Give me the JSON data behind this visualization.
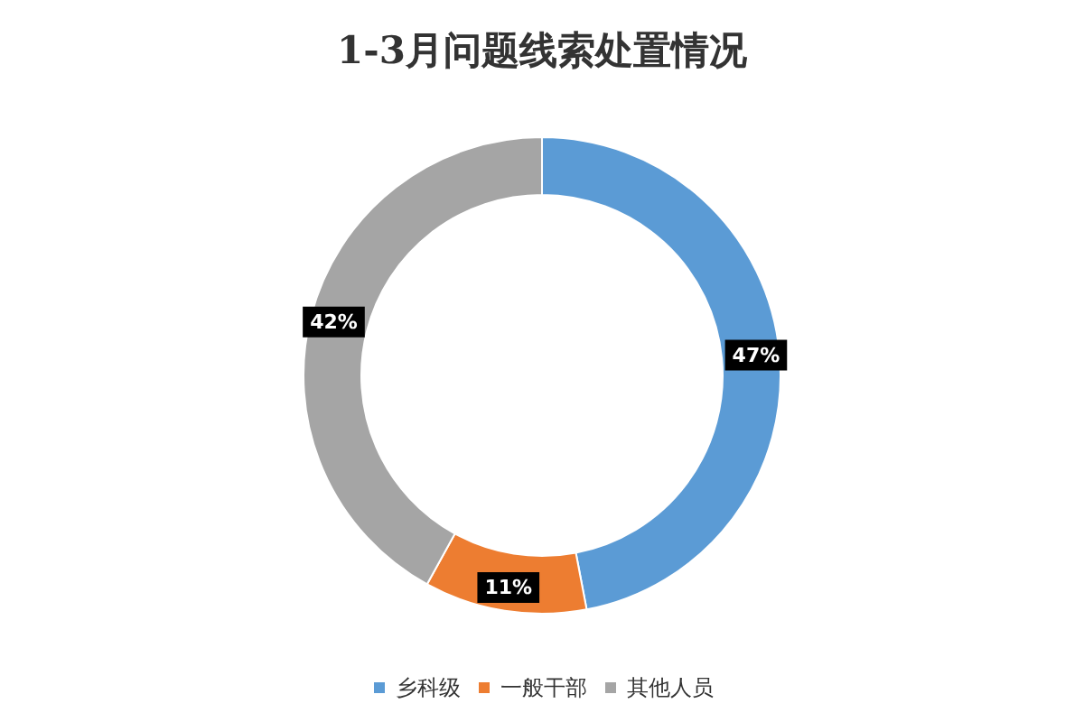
{
  "chart_data": {
    "type": "donut",
    "title": "1-3月问题线索处置情况",
    "categories": [
      "乡科级",
      "一般干部",
      "其他人员"
    ],
    "values": [
      47,
      11,
      42
    ],
    "value_labels": [
      "47%",
      "11%",
      "42%"
    ],
    "colors": [
      "#5b9bd5",
      "#ed7d31",
      "#a5a5a5"
    ],
    "legend": "bottom"
  }
}
